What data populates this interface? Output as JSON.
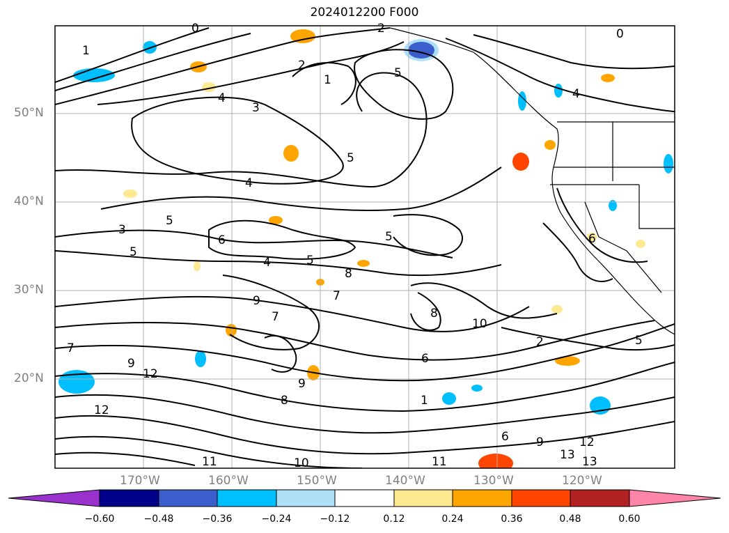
{
  "title": "2024012200 F000",
  "lat_labels": [
    "50°N",
    "40°N",
    "30°N",
    "20°N"
  ],
  "lon_labels": [
    "170°W",
    "160°W",
    "150°W",
    "140°W",
    "130°W",
    "120°W"
  ],
  "colorbar": {
    "ticks": [
      "−0.60",
      "−0.48",
      "−0.36",
      "−0.24",
      "−0.12",
      "0.12",
      "0.24",
      "0.36",
      "0.48",
      "0.60"
    ],
    "colors": [
      "#9932cc",
      "#00008b",
      "#3a5fcd",
      "#00bfff",
      "#aee0f7",
      "#ffffff",
      "#fde98f",
      "#ffa500",
      "#ff4500",
      "#b22222",
      "#ff85a8"
    ]
  },
  "contour_labels": [
    "0",
    "2",
    "1",
    "4",
    "3",
    "5",
    "6",
    "7",
    "8",
    "9",
    "10",
    "11",
    "12",
    "13"
  ]
}
